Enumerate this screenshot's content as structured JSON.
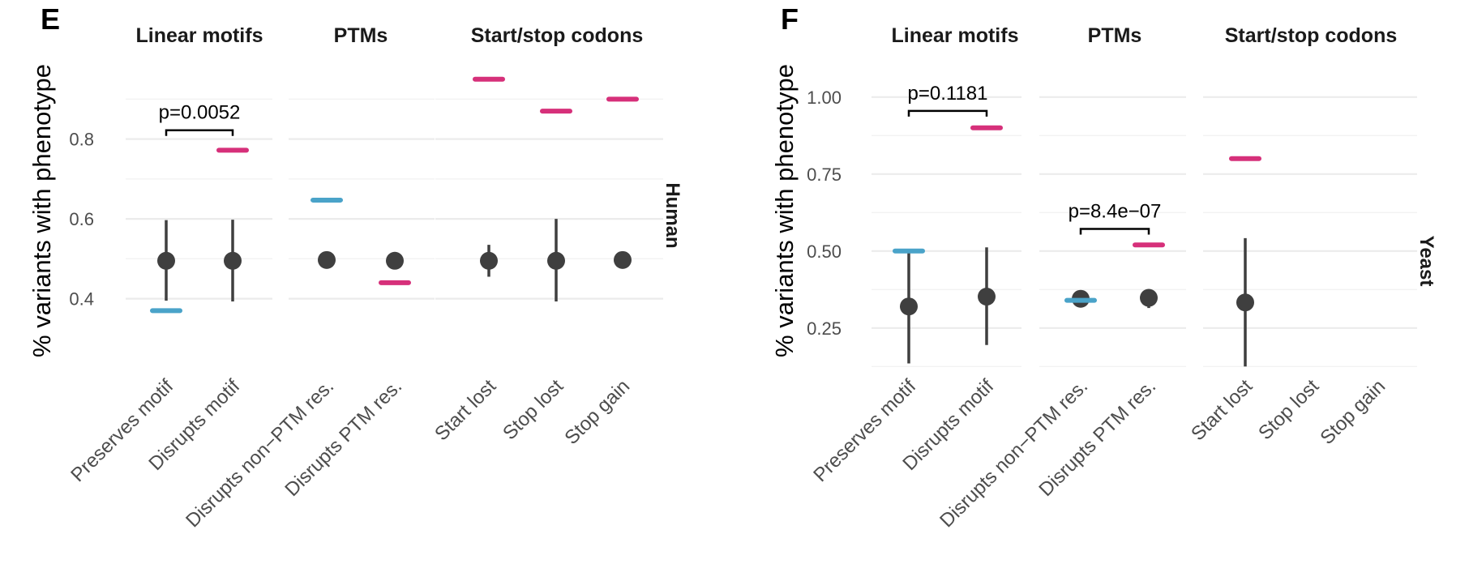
{
  "figure": {
    "panels": [
      "E",
      "F"
    ],
    "y_axis_label": "% variants with phenotype",
    "facet_titles": [
      "Linear motifs",
      "PTMs",
      "Start/stop codons"
    ]
  },
  "colors": {
    "observed_blue": "#4aa3c9",
    "observed_pink": "#d6307a",
    "point": "#3f3f3f",
    "grid": "#ebebeb"
  },
  "chart_data": [
    {
      "type": "scatter",
      "panel": "E",
      "strip_label": "Human",
      "ylabel": "% variants with phenotype",
      "ylim": [
        0.32,
        0.99
      ],
      "y_ticks": [
        0.4,
        0.6,
        0.8
      ],
      "y_tick_labels": [
        "0.4",
        "0.6",
        "0.8"
      ],
      "grid": true,
      "facets": [
        {
          "title": "Linear motifs",
          "categories": [
            "Preserves motif",
            "Disrupts motif"
          ],
          "expected": [
            0.495,
            0.495
          ],
          "ci_low": [
            0.395,
            0.393
          ],
          "ci_high": [
            0.597,
            0.598
          ],
          "observed": [
            0.37,
            0.772
          ],
          "observed_color": [
            "blue",
            "pink"
          ],
          "annotation": {
            "label": "p=0.0052",
            "y": 0.822
          }
        },
        {
          "title": "PTMs",
          "categories": [
            "Disrupts non−PTM res.",
            "Disrupts PTM res."
          ],
          "expected": [
            0.497,
            0.495
          ],
          "ci_low": [
            0.497,
            0.475
          ],
          "ci_high": [
            0.497,
            0.517
          ],
          "observed": [
            0.647,
            0.44
          ],
          "observed_color": [
            "blue",
            "pink"
          ],
          "annotation": null
        },
        {
          "title": "Start/stop codons",
          "categories": [
            "Start lost",
            "Stop lost",
            "Stop gain"
          ],
          "expected": [
            0.495,
            0.495,
            0.497
          ],
          "ci_low": [
            0.455,
            0.393,
            0.497
          ],
          "ci_high": [
            0.535,
            0.6,
            0.497
          ],
          "observed": [
            0.95,
            0.87,
            0.9
          ],
          "observed_color": [
            "pink",
            "pink",
            "pink"
          ],
          "annotation": null
        }
      ]
    },
    {
      "type": "scatter",
      "panel": "F",
      "strip_label": "Yeast",
      "ylabel": "% variants with phenotype",
      "ylim": [
        0.11,
        1.11
      ],
      "y_ticks": [
        0.25,
        0.5,
        0.75,
        1.0
      ],
      "y_tick_labels": [
        "0.25",
        "0.50",
        "0.75",
        "1.00"
      ],
      "grid": true,
      "facets": [
        {
          "title": "Linear motifs",
          "categories": [
            "Preserves motif",
            "Disrupts motif"
          ],
          "expected": [
            0.32,
            0.352
          ],
          "ci_low": [
            0.135,
            0.195
          ],
          "ci_high": [
            0.5,
            0.512
          ],
          "observed": [
            0.5,
            0.9
          ],
          "observed_color": [
            "blue",
            "pink"
          ],
          "annotation": {
            "label": "p=0.1181",
            "y": 0.955
          }
        },
        {
          "title": "PTMs",
          "categories": [
            "Disrupts non−PTM res.",
            "Disrupts PTM res."
          ],
          "expected": [
            0.345,
            0.348
          ],
          "ci_low": [
            0.335,
            0.315
          ],
          "ci_high": [
            0.355,
            0.375
          ],
          "observed": [
            0.34,
            0.52
          ],
          "observed_color": [
            "blue",
            "pink"
          ],
          "annotation": {
            "label": "p=8.4e−07",
            "y": 0.572
          }
        },
        {
          "title": "Start/stop codons",
          "categories": [
            "Start lost",
            "Stop lost",
            "Stop gain"
          ],
          "expected": [
            0.333,
            null,
            null
          ],
          "ci_low": [
            0.125,
            null,
            null
          ],
          "ci_high": [
            0.542,
            null,
            null
          ],
          "observed": [
            0.8,
            null,
            null
          ],
          "observed_color": [
            "pink",
            "pink",
            "pink"
          ],
          "annotation": null
        }
      ]
    }
  ]
}
